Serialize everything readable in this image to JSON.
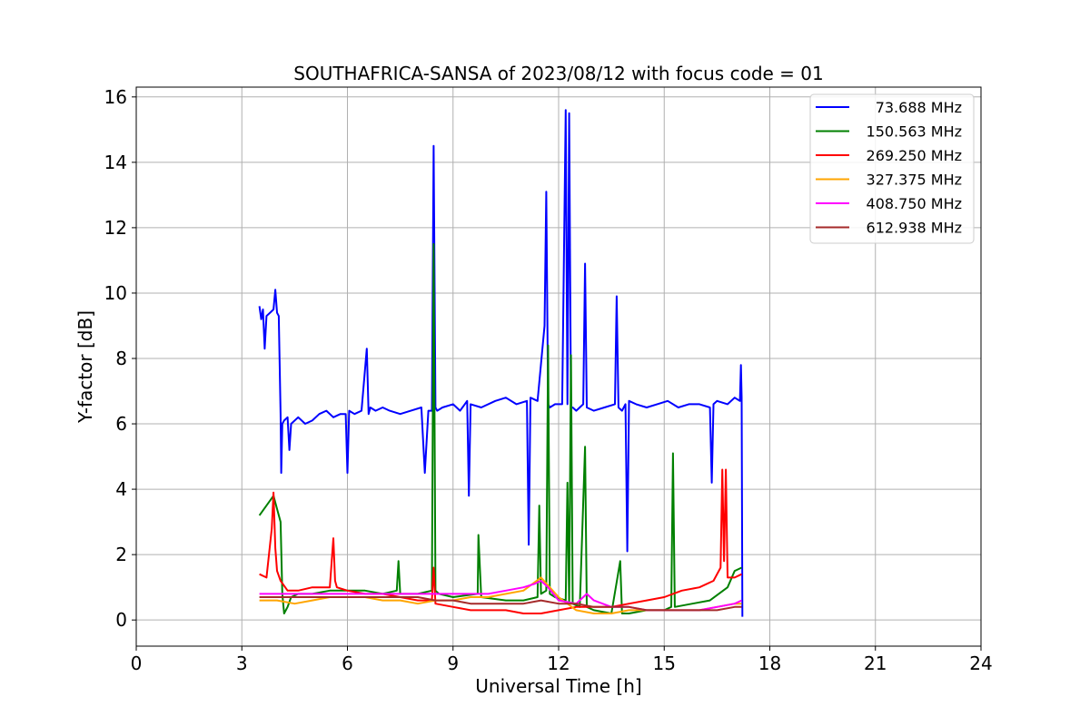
{
  "chart_data": {
    "type": "line",
    "title": "SOUTHAFRICA-SANSA of 2023/08/12 with focus code = 01",
    "xlabel": "Universal Time [h]",
    "ylabel": "Y-factor [dB]",
    "xlim": [
      0,
      24
    ],
    "ylim": [
      -0.8,
      16.3
    ],
    "xticks": [
      0,
      3,
      6,
      9,
      12,
      15,
      18,
      21,
      24
    ],
    "yticks": [
      0,
      2,
      4,
      6,
      8,
      10,
      12,
      14,
      16
    ],
    "grid": true,
    "legend_position": "top-right",
    "series": [
      {
        "name": " 73.688 MHz",
        "color": "#0000ff",
        "x": [
          3.5,
          3.55,
          3.6,
          3.65,
          3.7,
          3.8,
          3.9,
          3.95,
          4.0,
          4.05,
          4.1,
          4.12,
          4.15,
          4.2,
          4.3,
          4.35,
          4.4,
          4.6,
          4.8,
          5.0,
          5.2,
          5.4,
          5.6,
          5.8,
          5.95,
          6.0,
          6.05,
          6.2,
          6.4,
          6.55,
          6.6,
          6.65,
          6.8,
          7.0,
          7.2,
          7.5,
          7.8,
          8.1,
          8.2,
          8.3,
          8.4,
          8.45,
          8.5,
          8.55,
          8.7,
          9.0,
          9.2,
          9.4,
          9.45,
          9.5,
          9.8,
          10.2,
          10.5,
          10.8,
          11.1,
          11.15,
          11.2,
          11.4,
          11.6,
          11.65,
          11.7,
          11.75,
          11.9,
          12.1,
          12.2,
          12.25,
          12.3,
          12.35,
          12.4,
          12.5,
          12.7,
          12.75,
          12.8,
          13.0,
          13.3,
          13.6,
          13.65,
          13.7,
          13.8,
          13.9,
          13.95,
          14.0,
          14.2,
          14.5,
          14.8,
          15.1,
          15.4,
          15.7,
          16.0,
          16.3,
          16.35,
          16.4,
          16.5,
          16.8,
          17.0,
          17.15,
          17.18,
          17.2,
          17.22
        ],
        "values": [
          9.6,
          9.2,
          9.5,
          8.3,
          9.3,
          9.4,
          9.5,
          10.1,
          9.4,
          9.3,
          6.3,
          4.5,
          6.0,
          6.1,
          6.2,
          5.2,
          6.0,
          6.2,
          6.0,
          6.1,
          6.3,
          6.4,
          6.2,
          6.3,
          6.3,
          4.5,
          6.4,
          6.3,
          6.4,
          8.3,
          6.3,
          6.5,
          6.4,
          6.5,
          6.4,
          6.3,
          6.4,
          6.5,
          4.5,
          6.4,
          6.4,
          14.5,
          6.5,
          6.4,
          6.5,
          6.6,
          6.4,
          6.7,
          3.8,
          6.6,
          6.5,
          6.7,
          6.8,
          6.6,
          6.7,
          2.3,
          6.8,
          6.7,
          9.0,
          13.1,
          6.6,
          6.5,
          6.6,
          6.6,
          15.6,
          6.6,
          15.5,
          6.5,
          6.5,
          6.4,
          6.6,
          10.9,
          6.5,
          6.4,
          6.5,
          6.6,
          9.9,
          6.5,
          6.4,
          6.6,
          2.1,
          6.7,
          6.6,
          6.5,
          6.6,
          6.7,
          6.5,
          6.6,
          6.6,
          6.5,
          4.2,
          6.6,
          6.7,
          6.6,
          6.8,
          6.7,
          7.8,
          6.8,
          0.1
        ]
      },
      {
        "name": "150.563 MHz",
        "color": "#008000",
        "x": [
          3.5,
          3.7,
          3.9,
          4.0,
          4.1,
          4.15,
          4.2,
          4.3,
          4.4,
          4.6,
          5.0,
          5.5,
          6.0,
          6.5,
          7.0,
          7.4,
          7.45,
          7.5,
          8.0,
          8.4,
          8.45,
          8.5,
          8.6,
          9.0,
          9.7,
          9.72,
          9.8,
          10.5,
          11.0,
          11.4,
          11.45,
          11.5,
          11.65,
          11.7,
          11.75,
          11.9,
          12.2,
          12.25,
          12.3,
          12.35,
          12.4,
          12.6,
          12.75,
          12.8,
          13.0,
          13.5,
          13.75,
          13.8,
          14.0,
          14.5,
          15.0,
          15.2,
          15.25,
          15.3,
          15.8,
          16.3,
          16.8,
          17.0,
          17.2
        ],
        "values": [
          3.2,
          3.5,
          3.8,
          3.4,
          3.0,
          0.8,
          0.2,
          0.4,
          0.7,
          0.8,
          0.8,
          0.9,
          0.9,
          0.9,
          0.8,
          0.9,
          1.8,
          0.8,
          0.8,
          0.9,
          11.5,
          0.9,
          0.8,
          0.7,
          0.8,
          2.6,
          0.7,
          0.6,
          0.6,
          0.7,
          3.5,
          0.8,
          0.9,
          8.4,
          0.8,
          0.7,
          0.6,
          4.2,
          0.5,
          8.1,
          0.5,
          0.4,
          5.3,
          0.4,
          0.3,
          0.2,
          1.8,
          0.2,
          0.2,
          0.3,
          0.3,
          0.4,
          5.1,
          0.4,
          0.5,
          0.6,
          1.0,
          1.5,
          1.6
        ]
      },
      {
        "name": "269.250 MHz",
        "color": "#ff0000",
        "x": [
          3.5,
          3.7,
          3.85,
          3.9,
          3.95,
          4.0,
          4.1,
          4.3,
          4.6,
          5.0,
          5.5,
          5.6,
          5.65,
          5.7,
          6.0,
          6.5,
          7.0,
          7.5,
          8.0,
          8.4,
          8.45,
          8.5,
          9.0,
          9.5,
          10.0,
          10.5,
          11.0,
          11.5,
          12.0,
          12.5,
          13.0,
          13.5,
          14.0,
          14.5,
          15.0,
          15.5,
          16.0,
          16.4,
          16.6,
          16.65,
          16.7,
          16.75,
          16.8,
          17.0,
          17.2
        ],
        "values": [
          1.4,
          1.3,
          2.8,
          3.9,
          2.2,
          1.5,
          1.2,
          0.9,
          0.9,
          1.0,
          1.0,
          2.5,
          1.2,
          1.0,
          0.9,
          0.8,
          0.8,
          0.7,
          0.6,
          0.6,
          1.6,
          0.5,
          0.4,
          0.3,
          0.3,
          0.3,
          0.2,
          0.2,
          0.3,
          0.4,
          0.4,
          0.4,
          0.5,
          0.6,
          0.7,
          0.9,
          1.0,
          1.2,
          1.6,
          4.6,
          1.8,
          4.6,
          1.3,
          1.3,
          1.4
        ]
      },
      {
        "name": "327.375 MHz",
        "color": "#ffa500",
        "x": [
          3.5,
          4.0,
          4.5,
          5.0,
          5.5,
          6.0,
          6.5,
          7.0,
          7.5,
          8.0,
          8.5,
          9.0,
          9.5,
          10.0,
          10.5,
          11.0,
          11.5,
          12.0,
          12.5,
          13.0,
          13.5,
          14.0,
          14.5,
          15.0,
          15.5,
          16.0,
          16.5,
          17.0,
          17.2
        ],
        "values": [
          0.6,
          0.6,
          0.5,
          0.6,
          0.7,
          0.7,
          0.7,
          0.6,
          0.6,
          0.5,
          0.6,
          0.6,
          0.7,
          0.7,
          0.8,
          0.9,
          1.3,
          0.7,
          0.3,
          0.2,
          0.2,
          0.3,
          0.3,
          0.3,
          0.3,
          0.3,
          0.4,
          0.5,
          0.5
        ]
      },
      {
        "name": "408.750 MHz",
        "color": "#ff00ff",
        "x": [
          3.5,
          4.0,
          4.5,
          5.0,
          5.5,
          6.0,
          6.5,
          7.0,
          7.5,
          8.0,
          8.5,
          9.0,
          9.5,
          10.0,
          10.5,
          11.0,
          11.3,
          11.5,
          11.7,
          12.0,
          12.5,
          12.8,
          13.0,
          13.5,
          14.0,
          14.5,
          15.0,
          15.5,
          16.0,
          16.5,
          17.0,
          17.2
        ],
        "values": [
          0.8,
          0.8,
          0.8,
          0.8,
          0.8,
          0.8,
          0.8,
          0.8,
          0.8,
          0.8,
          0.8,
          0.8,
          0.8,
          0.8,
          0.9,
          1.0,
          1.1,
          1.2,
          1.0,
          0.6,
          0.5,
          0.8,
          0.6,
          0.4,
          0.4,
          0.3,
          0.3,
          0.3,
          0.3,
          0.4,
          0.5,
          0.6
        ]
      },
      {
        "name": "612.938 MHz",
        "color": "#a52a2a",
        "x": [
          3.5,
          4.0,
          4.5,
          5.0,
          5.5,
          6.0,
          6.5,
          7.0,
          7.5,
          8.0,
          8.5,
          9.0,
          9.5,
          10.0,
          10.5,
          11.0,
          11.5,
          12.0,
          12.5,
          13.0,
          13.5,
          14.0,
          14.5,
          15.0,
          15.5,
          16.0,
          16.5,
          17.0,
          17.2
        ],
        "values": [
          0.7,
          0.7,
          0.7,
          0.7,
          0.7,
          0.7,
          0.7,
          0.7,
          0.7,
          0.7,
          0.6,
          0.6,
          0.5,
          0.5,
          0.5,
          0.5,
          0.6,
          0.5,
          0.5,
          0.4,
          0.4,
          0.4,
          0.3,
          0.3,
          0.3,
          0.3,
          0.3,
          0.4,
          0.4
        ]
      }
    ]
  }
}
